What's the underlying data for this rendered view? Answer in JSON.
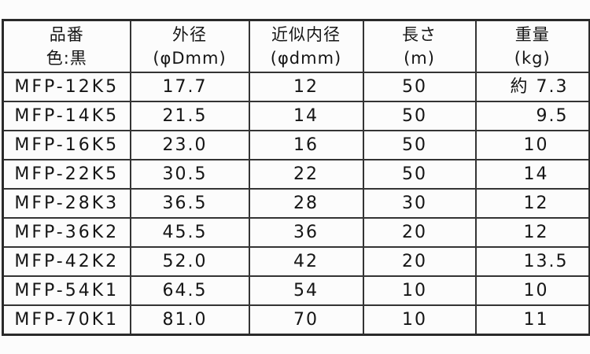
{
  "colors": {
    "background": "#fcfcfc",
    "grid": "#343434",
    "grid_outer": "#2a2a2a",
    "text": "#151515"
  },
  "table": {
    "columns": [
      {
        "id": "part-number",
        "line1": "品番",
        "line2": "色:黒"
      },
      {
        "id": "outer-diameter",
        "line1": "外径",
        "line2": "(φDmm)"
      },
      {
        "id": "approx-inner-diameter",
        "line1": "近似内径",
        "line2": "(φdmm)"
      },
      {
        "id": "length",
        "line1": "長さ",
        "line2": "(m)"
      },
      {
        "id": "weight",
        "line1": "重量",
        "line2": "(kg)"
      }
    ],
    "rows": [
      [
        "MFP-12K5",
        "17.7",
        "12",
        "50",
        "約 7.3"
      ],
      [
        "MFP-14K5",
        "21.5",
        "14",
        "50",
        "9.5"
      ],
      [
        "MFP-16K5",
        "23.0",
        "16",
        "50",
        "10"
      ],
      [
        "MFP-22K5",
        "30.5",
        "22",
        "50",
        "14"
      ],
      [
        "MFP-28K3",
        "36.5",
        "28",
        "30",
        "12"
      ],
      [
        "MFP-36K2",
        "45.5",
        "36",
        "20",
        "12"
      ],
      [
        "MFP-42K2",
        "52.0",
        "42",
        "20",
        "13.5"
      ],
      [
        "MFP-54K1",
        "64.5",
        "54",
        "10",
        "10"
      ],
      [
        "MFP-70K1",
        "81.0",
        "70",
        "10",
        "11"
      ]
    ]
  }
}
